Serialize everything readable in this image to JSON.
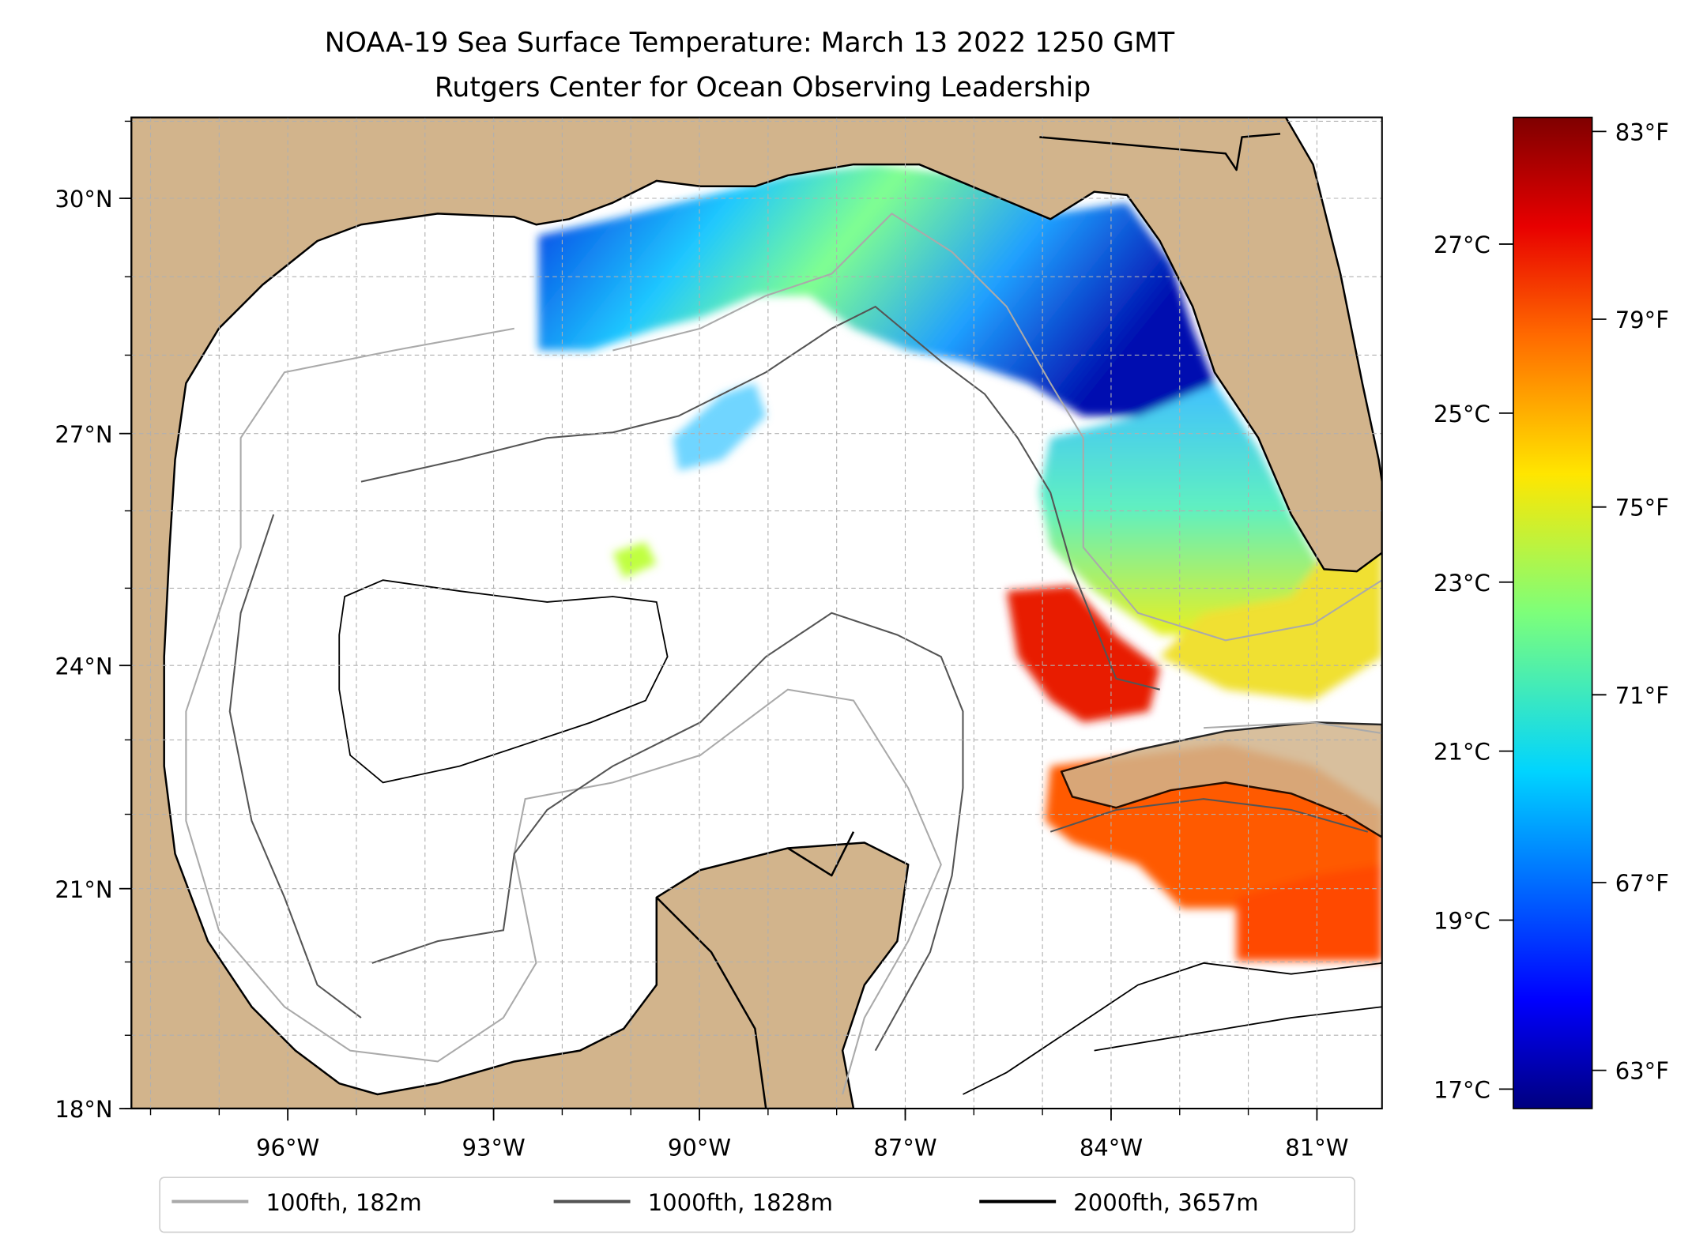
{
  "title": {
    "line1": "NOAA-19 Sea Surface Temperature: March 13 2022 1250 GMT",
    "line2": "Rutgers Center for Ocean Observing Leadership"
  },
  "map": {
    "lat_ticks": [
      {
        "value": 30,
        "label": "30°N"
      },
      {
        "value": 27,
        "label": "27°N"
      },
      {
        "value": 24,
        "label": "24°N"
      },
      {
        "value": 21,
        "label": "21°N"
      },
      {
        "value": 18,
        "label": "18°N"
      }
    ],
    "lon_ticks": [
      {
        "value": 96,
        "label": "96°W"
      },
      {
        "value": 93,
        "label": "93°W"
      },
      {
        "value": 90,
        "label": "90°W"
      },
      {
        "value": 87,
        "label": "87°W"
      },
      {
        "value": 84,
        "label": "84°W"
      },
      {
        "value": 81,
        "label": "81°W"
      }
    ],
    "extent": {
      "lon_west": 98.4,
      "lon_east": 80.0,
      "lat_south": 18.0,
      "lat_north": 31.05
    },
    "colors": {
      "land": "#d2b48c",
      "ocean": "#ffffff",
      "lakes": "#97b6e1"
    }
  },
  "colorbar": {
    "cmap": "jet",
    "range_c": [
      16.77,
      28.5
    ],
    "celsius_ticks": [
      {
        "value": 27,
        "label": "27°C"
      },
      {
        "value": 25,
        "label": "25°C"
      },
      {
        "value": 23,
        "label": "23°C"
      },
      {
        "value": 21,
        "label": "21°C"
      },
      {
        "value": 19,
        "label": "19°C"
      },
      {
        "value": 17,
        "label": "17°C"
      }
    ],
    "fahrenheit_ticks": [
      {
        "value": 83,
        "label": "83°F"
      },
      {
        "value": 79,
        "label": "79°F"
      },
      {
        "value": 75,
        "label": "75°F"
      },
      {
        "value": 71,
        "label": "71°F"
      },
      {
        "value": 67,
        "label": "67°F"
      },
      {
        "value": 63,
        "label": "63°F"
      }
    ]
  },
  "legend": {
    "items": [
      {
        "label": "100fth, 182m",
        "color": "#aaaaaa"
      },
      {
        "label": "1000fth, 1828m",
        "color": "#555555"
      },
      {
        "label": "2000fth, 3657m",
        "color": "#000000"
      }
    ]
  }
}
